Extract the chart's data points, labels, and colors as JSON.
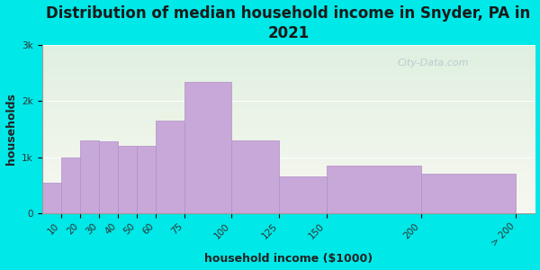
{
  "title": "Distribution of median household income in Snyder, PA in\n2021",
  "xlabel": "household income ($1000)",
  "ylabel": "households",
  "bar_left_edges": [
    0,
    10,
    20,
    30,
    40,
    50,
    60,
    75,
    100,
    125,
    150,
    200
  ],
  "bar_widths": [
    10,
    10,
    10,
    10,
    10,
    10,
    15,
    25,
    25,
    25,
    50,
    50
  ],
  "bar_values": [
    550,
    1000,
    1300,
    1280,
    1200,
    1200,
    1650,
    2350,
    1300,
    650,
    850,
    700
  ],
  "xtick_positions": [
    10,
    20,
    30,
    40,
    50,
    60,
    75,
    100,
    125,
    150,
    200,
    250
  ],
  "xtick_labels": [
    "10",
    "20",
    "30",
    "40",
    "50",
    "60",
    "75",
    "100",
    "125",
    "150",
    "200",
    "> 200"
  ],
  "bar_color": "#c8a8d8",
  "bar_edge_color": "#b090c8",
  "background_color": "#00e8e8",
  "plot_bg_top": "#e0f0e0",
  "plot_bg_bottom": "#f8f8f0",
  "xlim": [
    0,
    260
  ],
  "ylim": [
    0,
    3000
  ],
  "yticks": [
    0,
    1000,
    2000,
    3000
  ],
  "ytick_labels": [
    "0",
    "1k",
    "2k",
    "3k"
  ],
  "title_fontsize": 12,
  "axis_label_fontsize": 9,
  "tick_fontsize": 7.5,
  "watermark_text": "City-Data.com"
}
